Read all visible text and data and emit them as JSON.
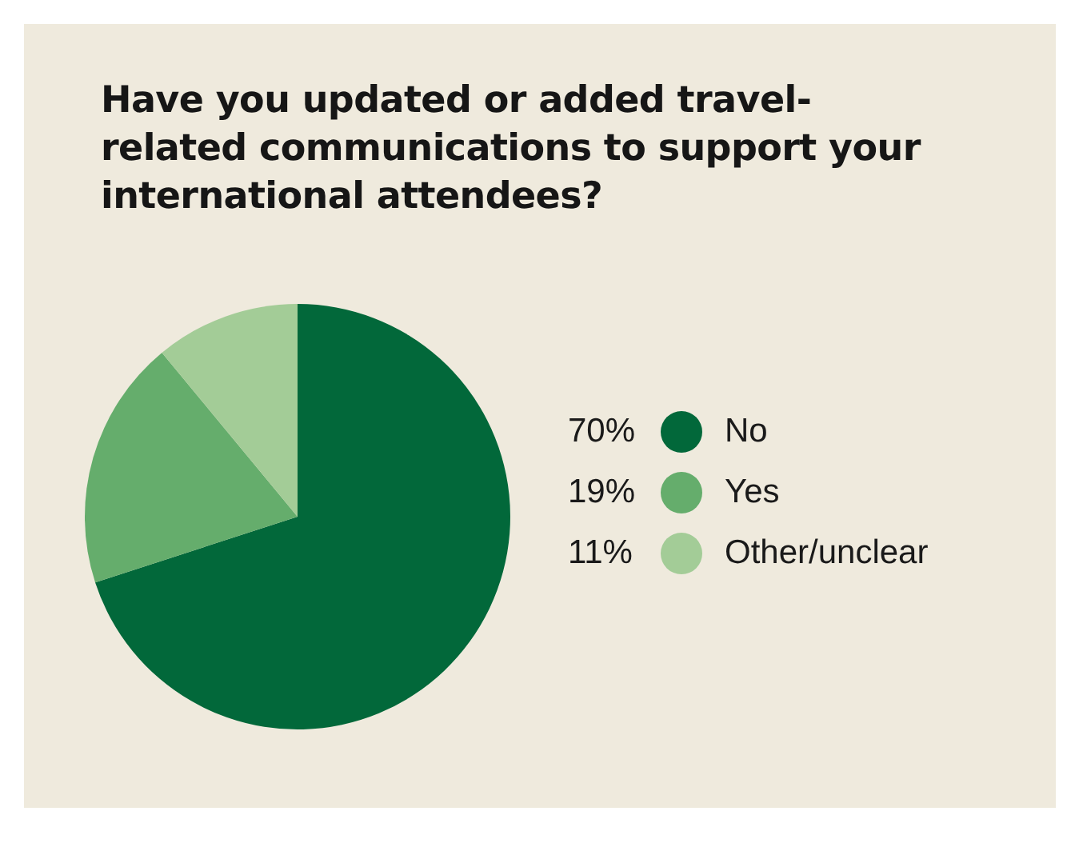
{
  "chart_data": {
    "type": "pie",
    "title": "Have you updated or added travel-related communications to support your international attendees?",
    "categories": [
      "No",
      "Yes",
      "Other/unclear"
    ],
    "values": [
      70,
      19,
      11
    ],
    "colors": [
      "#02683a",
      "#65ad6c",
      "#a3cc97"
    ],
    "value_labels": [
      "70%",
      "19%",
      "11%"
    ],
    "legend": "right"
  }
}
